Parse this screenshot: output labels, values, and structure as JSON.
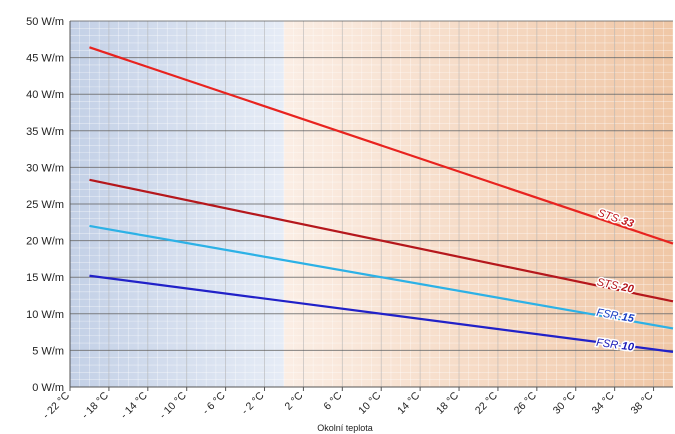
{
  "chart_data": {
    "type": "line",
    "xlabel": "Okolní teplota",
    "ylabel": "",
    "xlim": [
      -22,
      40
    ],
    "ylim": [
      0,
      50
    ],
    "grid": true,
    "x_ticks": [
      "- 22 °C",
      "- 18 °C",
      "- 14 °C",
      "- 10 °C",
      "- 6 °C",
      "- 2 °C",
      "2 °C",
      "6 °C",
      "10 °C",
      "14 °C",
      "18 °C",
      "22 °C",
      "26 °C",
      "30 °C",
      "34 °C",
      "38 °C"
    ],
    "x_tick_values": [
      -22,
      -18,
      -14,
      -10,
      -6,
      -2,
      2,
      6,
      10,
      14,
      18,
      22,
      26,
      30,
      34,
      38
    ],
    "y_ticks": [
      "0 W/m",
      "5 W/m",
      "10 W/m",
      "15 W/m",
      "20 W/m",
      "25 W/m",
      "30 W/m",
      "35 W/m",
      "40 W/m",
      "45 W/m",
      "50 W/m"
    ],
    "y_tick_values": [
      0,
      5,
      10,
      15,
      20,
      25,
      30,
      35,
      40,
      45,
      50
    ],
    "background_zones": [
      {
        "from": -22,
        "to": 0,
        "color_from": "#c3d0e6",
        "color_to": "#e6ecf6"
      },
      {
        "from": 0,
        "to": 40,
        "color_from": "#fbeee5",
        "color_to": "#f0c7a6"
      }
    ],
    "series": [
      {
        "name": "STS-33",
        "label_prefix": "STS-",
        "label_suffix": "33",
        "color": "#e8231f",
        "label_color": "#c0171c",
        "x": [
          -20,
          40
        ],
        "values": [
          46.4,
          19.6
        ],
        "label_x": 34,
        "label_y": 22.6
      },
      {
        "name": "STS-20",
        "label_prefix": "STS-",
        "label_suffix": "20",
        "color": "#b5171c",
        "label_color": "#b5171c",
        "x": [
          -20,
          40
        ],
        "values": [
          28.3,
          11.7
        ],
        "label_x": 34,
        "label_y": 13.4
      },
      {
        "name": "FSR-15",
        "label_prefix": "FSR-",
        "label_suffix": "15",
        "color": "#2cb1e6",
        "label_color": "#1a3fc4",
        "x": [
          -20,
          40
        ],
        "values": [
          22.0,
          8.0
        ],
        "label_x": 34,
        "label_y": 9.3
      },
      {
        "name": "FSR-10",
        "label_prefix": "FSR-",
        "label_suffix": "10",
        "color": "#2121c8",
        "label_color": "#1a1ab8",
        "x": [
          -20,
          40
        ],
        "values": [
          15.2,
          4.8
        ],
        "label_x": 34,
        "label_y": 5.3
      }
    ]
  }
}
